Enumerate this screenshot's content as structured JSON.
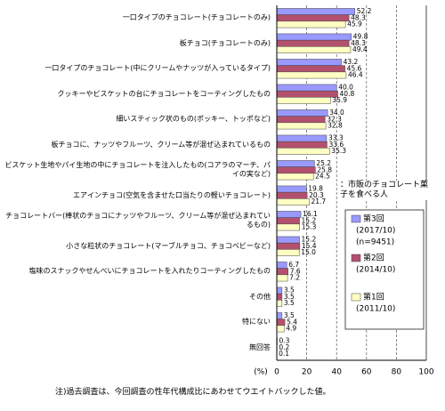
{
  "chart_data": {
    "type": "hbar",
    "categories": [
      "一口タイプのチョコレート(チョコレートのみ)",
      "板チョコ(チョコレートのみ)",
      "一口タイプのチョコレート(中にクリームやナッツが入っているタイプ)",
      "クッキーやビスケットの台にチョコレートをコーティングしたもの",
      "細いスティック状のもの(ポッキー、トッポなど)",
      "板チョコに、ナッツやフルーツ、クリーム等が混ぜ込まれているもの",
      "ビスケット生地やパイ生地の中にチョコレートを注入したもの(コアラのマーチ、パイの実など)",
      "エアインチョコ(空気を含ませた口当たりの軽いチョコレート)",
      "チョコレートバー(棒状のチョコにナッツやフルーツ、クリーム等が混ぜ込まれているもの)",
      "小さな粒状のチョコレート(マーブルチョコ、チョコベビーなど)",
      "塩味のスナックやせんべいにチョコレートを入れたりコーティングしたもの",
      "その他",
      "特にない",
      "無回答"
    ],
    "series": [
      {
        "name": "第3回",
        "period": "(2017/10)",
        "n": "(n=9451)",
        "color": "#9999ff",
        "values": [
          52.2,
          49.8,
          43.2,
          40.0,
          34.0,
          33.3,
          25.2,
          19.8,
          16.1,
          15.2,
          6.7,
          3.5,
          3.5,
          0.3
        ],
        "value_labels": [
          "52.2",
          "49.8",
          "43.2",
          "40.0",
          "34.0",
          "33.3",
          "25.2",
          "19.8",
          "16.1",
          "15.2",
          "6.7",
          "3.5",
          "3.5",
          "0.3"
        ]
      },
      {
        "name": "第2回",
        "period": "(2014/10)",
        "color": "#b3506e",
        "values": [
          48.3,
          48.3,
          45.6,
          40.8,
          32.3,
          33.6,
          25.8,
          20.3,
          15.2,
          15.4,
          7.6,
          3.5,
          5.4,
          0.2
        ],
        "value_labels": [
          "48.3",
          "48.3",
          "45.6",
          "40.8",
          "32.3",
          "33.6",
          "25.8",
          "20.3",
          "15.2",
          "15.4",
          "7.6",
          "3.5",
          "5.4",
          "0.2"
        ]
      },
      {
        "name": "第1回",
        "period": "(2011/10)",
        "color": "#ffffc4",
        "values": [
          45.9,
          49.4,
          46.4,
          35.9,
          32.8,
          35.3,
          24.5,
          21.7,
          15.3,
          15.0,
          7.2,
          3.5,
          4.9,
          0.1
        ],
        "value_labels": [
          "45.9",
          "49.4",
          "46.4",
          "35.9",
          "32.8",
          "35.3",
          "24.5",
          "21.7",
          "15.3",
          "15.0",
          "7.2",
          "3.5",
          "4.9",
          "0.1"
        ]
      }
    ],
    "xlim": [
      0,
      100
    ],
    "xticks": [
      0,
      20,
      40,
      60,
      80,
      100
    ],
    "grid": true,
    "x_axis_label": "(%)",
    "annotation": "：市販のチョコレート菓子を食べる人",
    "footnote": "注)過去調査は、今回調査の性年代構成比にあわせてウエイトバックした値。"
  }
}
